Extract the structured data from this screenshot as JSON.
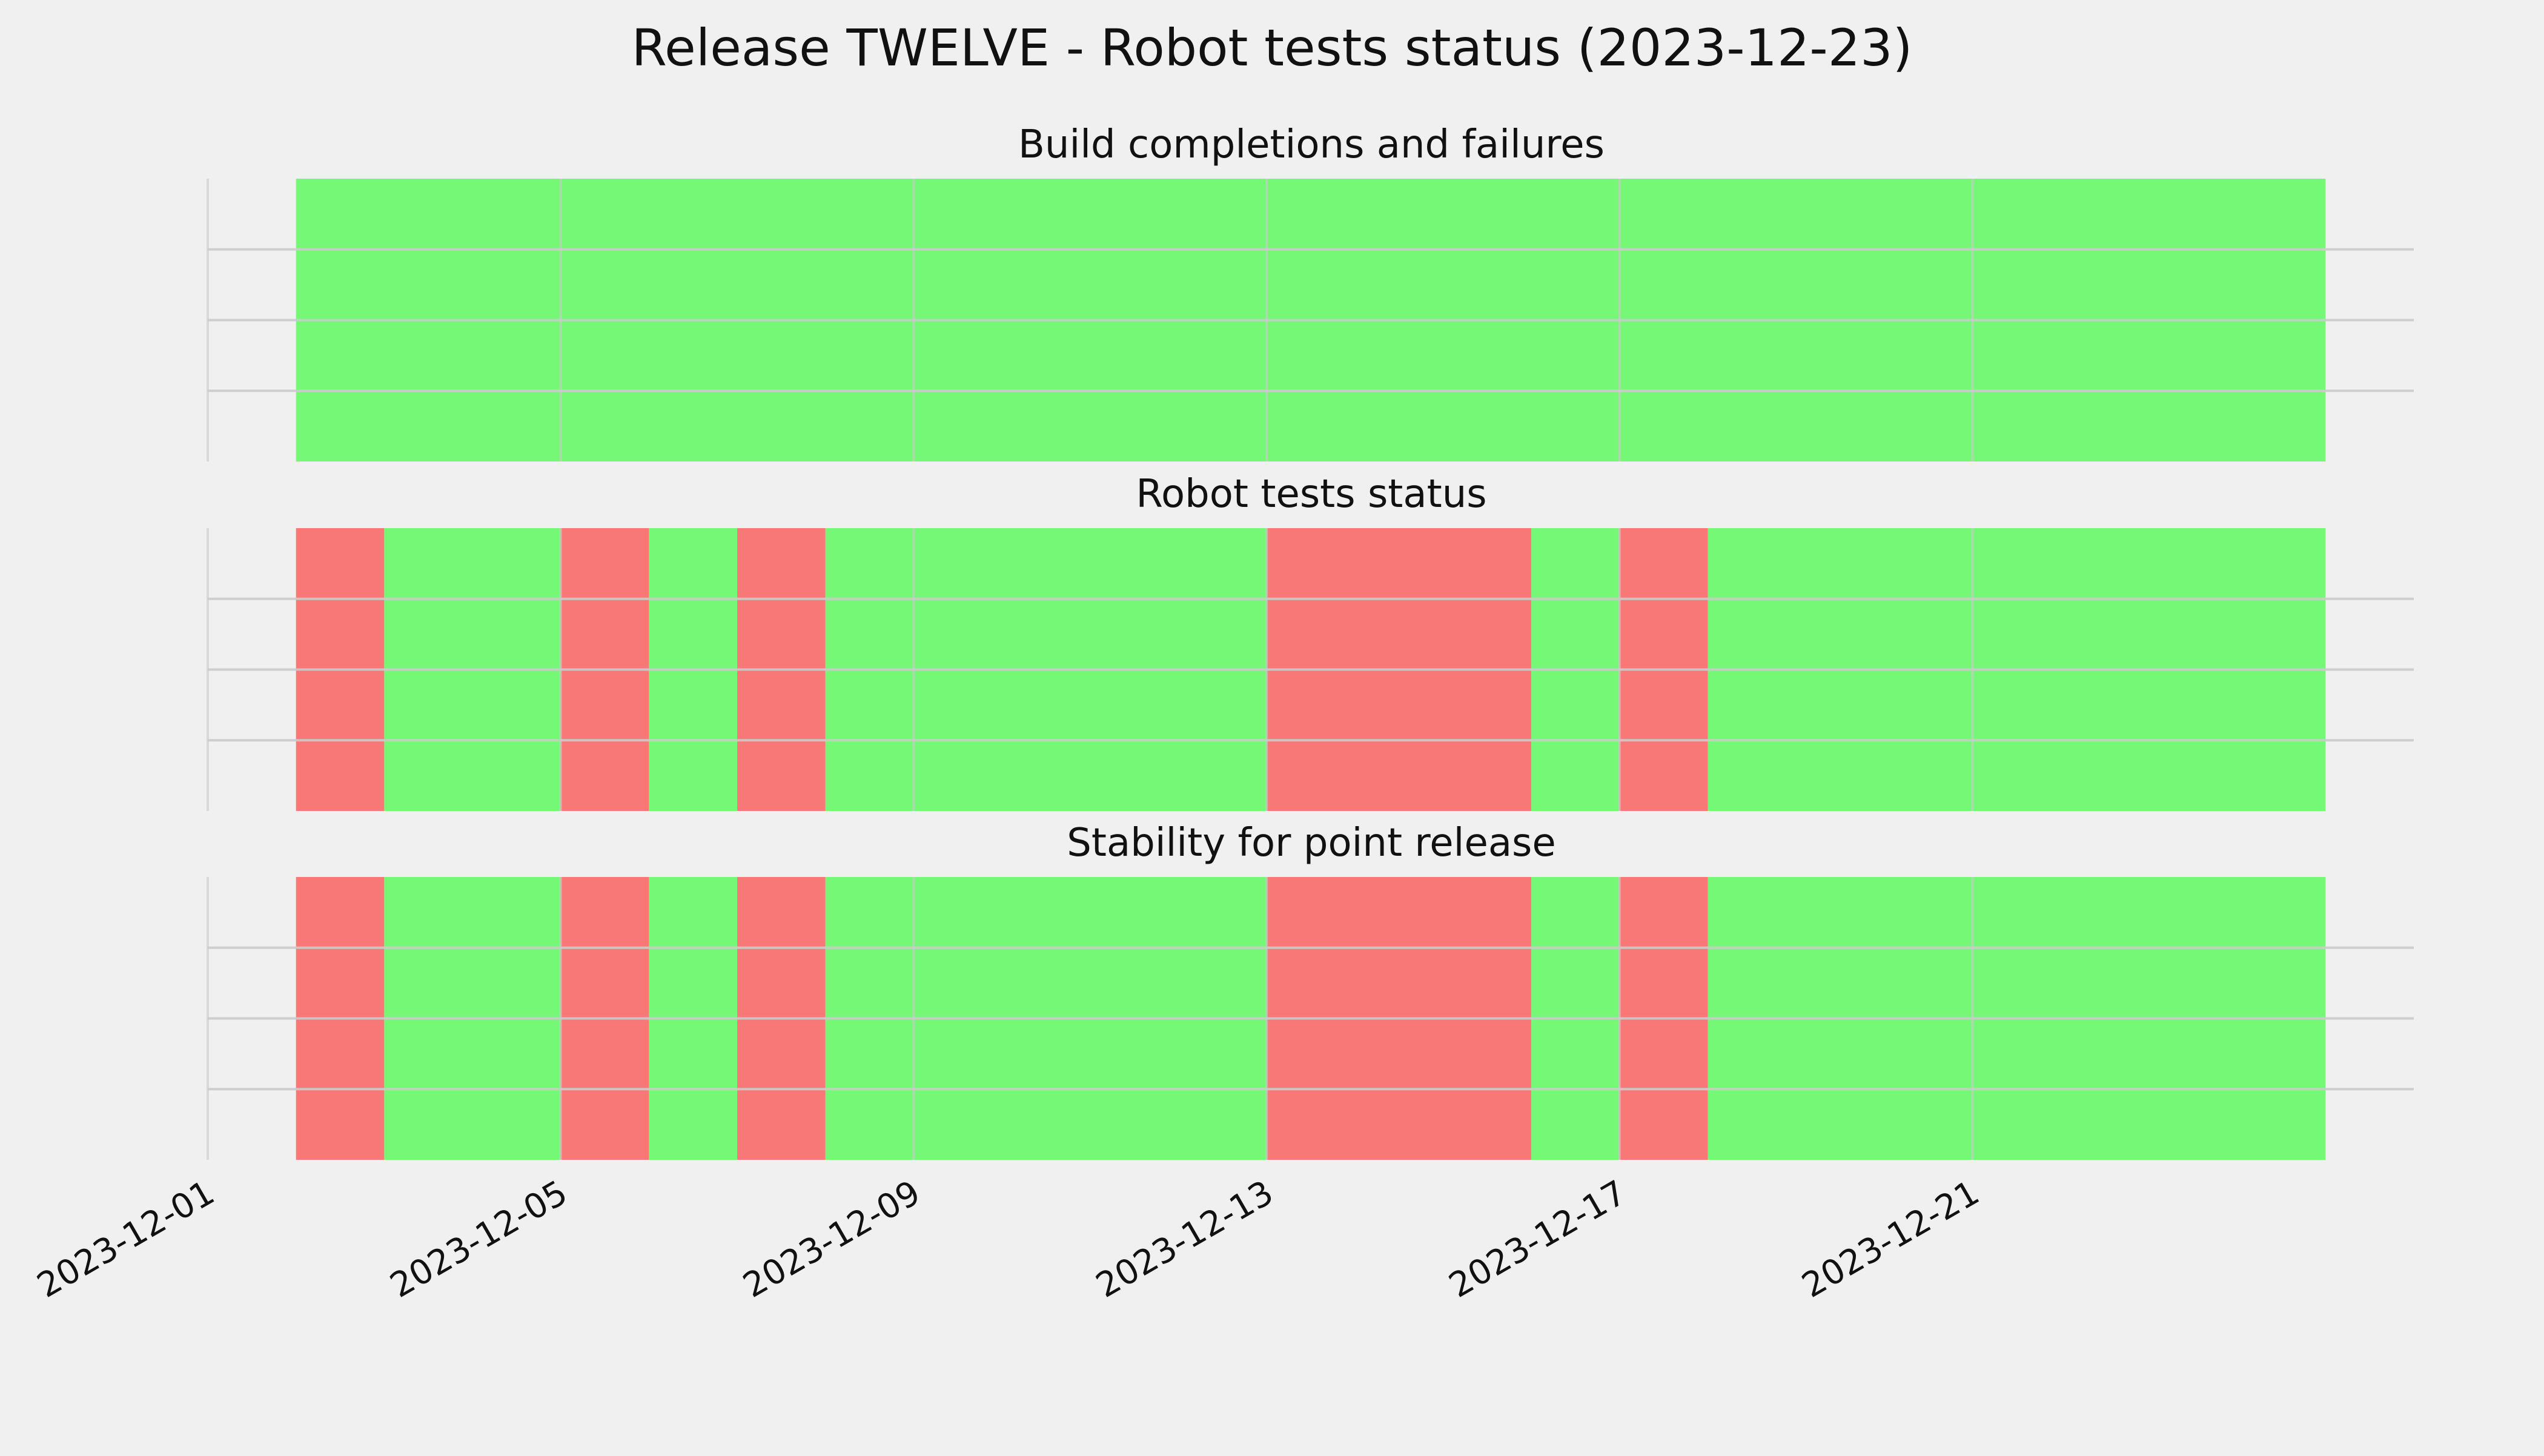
{
  "title": "Release TWELVE - Robot tests status (2023-12-23)",
  "colors": {
    "background": "#f0f0f0",
    "pass": "#76f877",
    "fail": "#f87878",
    "grid": "#cbcbcb",
    "text": "#111111"
  },
  "chart_data": [
    {
      "type": "timeline",
      "title": "Build completions and failures",
      "x_type": "date",
      "xlim": [
        "2023-12-01",
        "2023-12-26"
      ],
      "xticks": [
        "2023-12-01",
        "2023-12-05",
        "2023-12-09",
        "2023-12-13",
        "2023-12-17",
        "2023-12-21"
      ],
      "grid": true,
      "segments": [
        {
          "start": "2023-12-02",
          "end": "2023-12-25",
          "status": "pass"
        }
      ]
    },
    {
      "type": "timeline",
      "title": "Robot tests status",
      "x_type": "date",
      "xlim": [
        "2023-12-01",
        "2023-12-26"
      ],
      "xticks": [
        "2023-12-01",
        "2023-12-05",
        "2023-12-09",
        "2023-12-13",
        "2023-12-17",
        "2023-12-21"
      ],
      "grid": true,
      "segments": [
        {
          "start": "2023-12-02",
          "end": "2023-12-03",
          "status": "fail"
        },
        {
          "start": "2023-12-03",
          "end": "2023-12-05",
          "status": "pass"
        },
        {
          "start": "2023-12-05",
          "end": "2023-12-06",
          "status": "fail"
        },
        {
          "start": "2023-12-06",
          "end": "2023-12-07",
          "status": "pass"
        },
        {
          "start": "2023-12-07",
          "end": "2023-12-08",
          "status": "fail"
        },
        {
          "start": "2023-12-08",
          "end": "2023-12-13",
          "status": "pass"
        },
        {
          "start": "2023-12-13",
          "end": "2023-12-16",
          "status": "fail"
        },
        {
          "start": "2023-12-16",
          "end": "2023-12-17",
          "status": "pass"
        },
        {
          "start": "2023-12-17",
          "end": "2023-12-18",
          "status": "fail"
        },
        {
          "start": "2023-12-18",
          "end": "2023-12-25",
          "status": "pass"
        }
      ]
    },
    {
      "type": "timeline",
      "title": "Stability for point release",
      "x_type": "date",
      "xlim": [
        "2023-12-01",
        "2023-12-26"
      ],
      "xticks": [
        "2023-12-01",
        "2023-12-05",
        "2023-12-09",
        "2023-12-13",
        "2023-12-17",
        "2023-12-21"
      ],
      "grid": true,
      "segments": [
        {
          "start": "2023-12-02",
          "end": "2023-12-03",
          "status": "fail"
        },
        {
          "start": "2023-12-03",
          "end": "2023-12-05",
          "status": "pass"
        },
        {
          "start": "2023-12-05",
          "end": "2023-12-06",
          "status": "fail"
        },
        {
          "start": "2023-12-06",
          "end": "2023-12-07",
          "status": "pass"
        },
        {
          "start": "2023-12-07",
          "end": "2023-12-08",
          "status": "fail"
        },
        {
          "start": "2023-12-08",
          "end": "2023-12-13",
          "status": "pass"
        },
        {
          "start": "2023-12-13",
          "end": "2023-12-16",
          "status": "fail"
        },
        {
          "start": "2023-12-16",
          "end": "2023-12-17",
          "status": "pass"
        },
        {
          "start": "2023-12-17",
          "end": "2023-12-18",
          "status": "fail"
        },
        {
          "start": "2023-12-18",
          "end": "2023-12-25",
          "status": "pass"
        }
      ]
    }
  ]
}
